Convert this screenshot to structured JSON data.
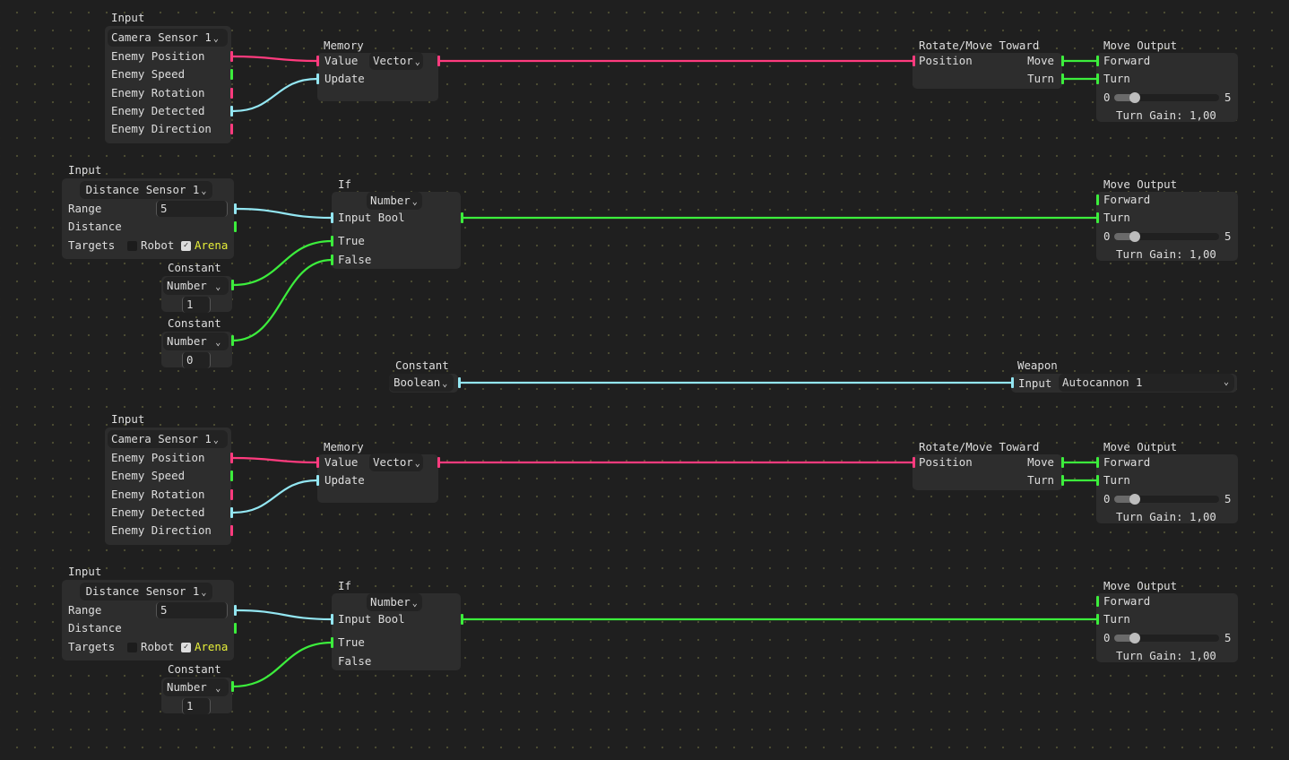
{
  "colors": {
    "vector": "#ff3b7e",
    "number": "#3ced3c",
    "boolean": "#93e6f2",
    "canvas": "#1f1f1f",
    "node": "#2d2d2d",
    "highlight": "#e7ef39"
  },
  "icons": {
    "dropdown": "chevron-down-icon",
    "checkbox_checked": "checkmark-icon"
  },
  "camera_groups": [
    {
      "input": {
        "title": "Input",
        "sensor": "Camera Sensor 1",
        "outputs": [
          "Enemy Position",
          "Enemy Speed",
          "Enemy Rotation",
          "Enemy Detected",
          "Enemy Direction"
        ]
      },
      "memory": {
        "title": "Memory",
        "value": "Value",
        "type": "Vector",
        "update": "Update"
      },
      "rotate": {
        "title": "Rotate/Move Toward",
        "position": "Position",
        "move": "Move",
        "turn": "Turn"
      },
      "move_output": {
        "title": "Move Output",
        "forward": "Forward",
        "turn": "Turn",
        "min": "0",
        "max": "5",
        "gain_label": "Turn Gain: 1,00",
        "gain_value": 1.0
      }
    },
    {
      "input": {
        "title": "Input",
        "sensor": "Camera Sensor 1",
        "outputs": [
          "Enemy Position",
          "Enemy Speed",
          "Enemy Rotation",
          "Enemy Detected",
          "Enemy Direction"
        ]
      },
      "memory": {
        "title": "Memory",
        "value": "Value",
        "type": "Vector",
        "update": "Update"
      },
      "rotate": {
        "title": "Rotate/Move Toward",
        "position": "Position",
        "move": "Move",
        "turn": "Turn"
      },
      "move_output": {
        "title": "Move Output",
        "forward": "Forward",
        "turn": "Turn",
        "min": "0",
        "max": "5",
        "gain_label": "Turn Gain: 1,00",
        "gain_value": 1.0
      }
    }
  ],
  "distance_groups": [
    {
      "input": {
        "title": "Input",
        "sensor": "Distance Sensor 1",
        "range_label": "Range",
        "range_value": "5",
        "distance": "Distance",
        "targets": "Targets",
        "robot": "Robot",
        "robot_checked": false,
        "arena": "Arena",
        "arena_checked": true
      },
      "constants": [
        {
          "title": "Constant",
          "type": "Number",
          "value": "1"
        },
        {
          "title": "Constant",
          "type": "Number",
          "value": "0"
        }
      ],
      "if": {
        "title": "If",
        "type": "Number",
        "input": "Input Bool",
        "true": "True",
        "false": "False"
      },
      "move_output": {
        "title": "Move Output",
        "forward": "Forward",
        "turn": "Turn",
        "min": "0",
        "max": "5",
        "gain_label": "Turn Gain: 1,00",
        "gain_value": 1.0
      }
    },
    {
      "input": {
        "title": "Input",
        "sensor": "Distance Sensor 1",
        "range_label": "Range",
        "range_value": "5",
        "distance": "Distance",
        "targets": "Targets",
        "robot": "Robot",
        "robot_checked": false,
        "arena": "Arena",
        "arena_checked": true
      },
      "constants": [
        {
          "title": "Constant",
          "type": "Number",
          "value": "1"
        }
      ],
      "if": {
        "title": "If",
        "type": "Number",
        "input": "Input Bool",
        "true": "True",
        "false": "False"
      },
      "move_output": {
        "title": "Move Output",
        "forward": "Forward",
        "turn": "Turn",
        "min": "0",
        "max": "5",
        "gain_label": "Turn Gain: 1,00",
        "gain_value": 1.0
      }
    }
  ],
  "weapon_group": {
    "constant": {
      "title": "Constant",
      "type": "Boolean"
    },
    "weapon": {
      "title": "Weapon",
      "input": "Input",
      "selected": "Autocannon 1"
    }
  }
}
